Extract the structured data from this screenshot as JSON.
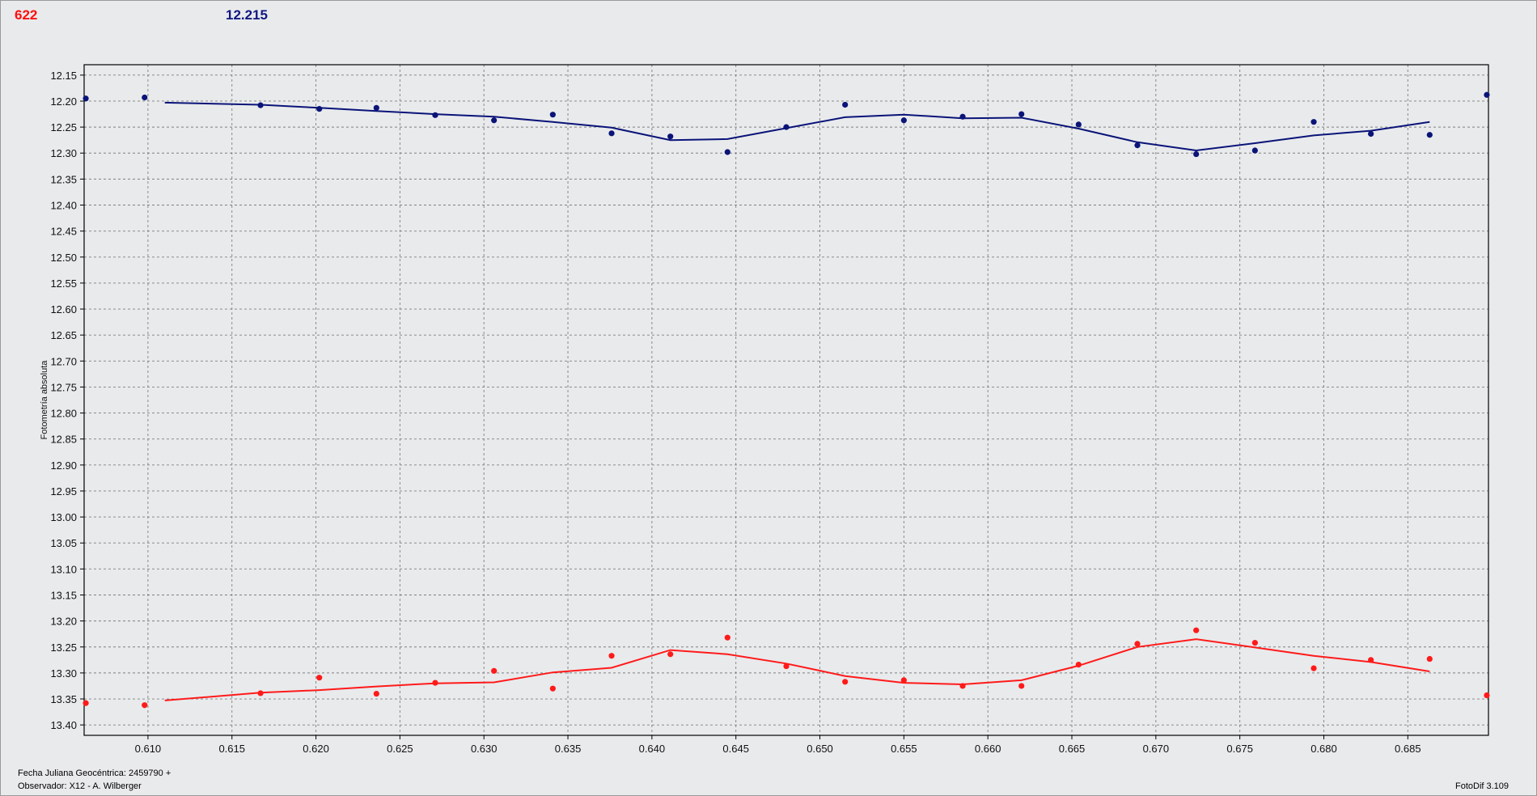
{
  "header": {
    "left_value": "622",
    "right_value": "12.215"
  },
  "footer": {
    "date_label": "Fecha Juliana Geocéntrica: 2459790 +",
    "observer_label": "Observador: X12 - A. Wilberger",
    "version": "FotoDif 3.109"
  },
  "colors": {
    "series_red": "#ff1a1a",
    "series_blue": "#0a1478",
    "grid": "#7f7f7f"
  },
  "chart_data": {
    "type": "scatter",
    "ylabel": "Fotometría absoluta",
    "xlabel": "",
    "xlim": [
      0.6062,
      0.6898
    ],
    "ylim": [
      12.13,
      13.42
    ],
    "y_inverted": true,
    "grid": true,
    "xticks": [
      "0.610",
      "0.615",
      "0.620",
      "0.625",
      "0.630",
      "0.635",
      "0.640",
      "0.645",
      "0.650",
      "0.655",
      "0.660",
      "0.665",
      "0.670",
      "0.675",
      "0.680",
      "0.685"
    ],
    "yticks": [
      "12.15",
      "12.20",
      "12.25",
      "12.30",
      "12.35",
      "12.40",
      "12.45",
      "12.50",
      "12.55",
      "12.60",
      "12.65",
      "12.70",
      "12.75",
      "12.80",
      "12.85",
      "12.90",
      "12.95",
      "13.00",
      "13.05",
      "13.10",
      "13.15",
      "13.20",
      "13.25",
      "13.30",
      "13.35",
      "13.40"
    ],
    "series": [
      {
        "color": "#0a1478",
        "points": [
          [
            0.6063,
            12.195
          ],
          [
            0.6098,
            12.193
          ],
          [
            0.6167,
            12.208
          ],
          [
            0.6202,
            12.215
          ],
          [
            0.6236,
            12.213
          ],
          [
            0.6271,
            12.227
          ],
          [
            0.6306,
            12.237
          ],
          [
            0.6341,
            12.226
          ],
          [
            0.6376,
            12.262
          ],
          [
            0.6411,
            12.268
          ],
          [
            0.6445,
            12.298
          ],
          [
            0.648,
            12.25
          ],
          [
            0.6515,
            12.207
          ],
          [
            0.655,
            12.237
          ],
          [
            0.6585,
            12.23
          ],
          [
            0.662,
            12.225
          ],
          [
            0.6654,
            12.245
          ],
          [
            0.6689,
            12.285
          ],
          [
            0.6724,
            12.302
          ],
          [
            0.6759,
            12.295
          ],
          [
            0.6794,
            12.24
          ],
          [
            0.6828,
            12.263
          ],
          [
            0.6863,
            12.265
          ],
          [
            0.6897,
            12.188
          ]
        ],
        "trend": [
          [
            0.611,
            12.203
          ],
          [
            0.6167,
            12.207
          ],
          [
            0.6202,
            12.213
          ],
          [
            0.6236,
            12.219
          ],
          [
            0.6271,
            12.225
          ],
          [
            0.6306,
            12.23
          ],
          [
            0.6341,
            12.24
          ],
          [
            0.6376,
            12.251
          ],
          [
            0.6411,
            12.275
          ],
          [
            0.6445,
            12.273
          ],
          [
            0.648,
            12.252
          ],
          [
            0.6515,
            12.231
          ],
          [
            0.655,
            12.226
          ],
          [
            0.6585,
            12.233
          ],
          [
            0.662,
            12.232
          ],
          [
            0.6654,
            12.253
          ],
          [
            0.6689,
            12.279
          ],
          [
            0.6724,
            12.295
          ],
          [
            0.6759,
            12.281
          ],
          [
            0.6794,
            12.266
          ],
          [
            0.6828,
            12.257
          ],
          [
            0.6863,
            12.24
          ]
        ]
      },
      {
        "color": "#ff1a1a",
        "points": [
          [
            0.6063,
            13.358
          ],
          [
            0.6098,
            13.362
          ],
          [
            0.6167,
            13.339
          ],
          [
            0.6202,
            13.309
          ],
          [
            0.6236,
            13.34
          ],
          [
            0.6271,
            13.319
          ],
          [
            0.6306,
            13.296
          ],
          [
            0.6341,
            13.33
          ],
          [
            0.6376,
            13.267
          ],
          [
            0.6411,
            13.264
          ],
          [
            0.6445,
            13.232
          ],
          [
            0.648,
            13.287
          ],
          [
            0.6515,
            13.317
          ],
          [
            0.655,
            13.314
          ],
          [
            0.6585,
            13.325
          ],
          [
            0.662,
            13.325
          ],
          [
            0.6654,
            13.284
          ],
          [
            0.6689,
            13.244
          ],
          [
            0.6724,
            13.218
          ],
          [
            0.6759,
            13.242
          ],
          [
            0.6794,
            13.291
          ],
          [
            0.6828,
            13.275
          ],
          [
            0.6863,
            13.273
          ],
          [
            0.6897,
            13.343
          ]
        ],
        "trend": [
          [
            0.611,
            13.353
          ],
          [
            0.6167,
            13.338
          ],
          [
            0.6202,
            13.333
          ],
          [
            0.6236,
            13.326
          ],
          [
            0.6271,
            13.32
          ],
          [
            0.6306,
            13.318
          ],
          [
            0.6341,
            13.299
          ],
          [
            0.6376,
            13.29
          ],
          [
            0.6411,
            13.256
          ],
          [
            0.6445,
            13.264
          ],
          [
            0.648,
            13.282
          ],
          [
            0.6515,
            13.306
          ],
          [
            0.655,
            13.319
          ],
          [
            0.6585,
            13.322
          ],
          [
            0.662,
            13.314
          ],
          [
            0.6654,
            13.286
          ],
          [
            0.6689,
            13.25
          ],
          [
            0.6724,
            13.235
          ],
          [
            0.6759,
            13.251
          ],
          [
            0.6794,
            13.267
          ],
          [
            0.6828,
            13.279
          ],
          [
            0.6863,
            13.297
          ]
        ]
      }
    ]
  }
}
